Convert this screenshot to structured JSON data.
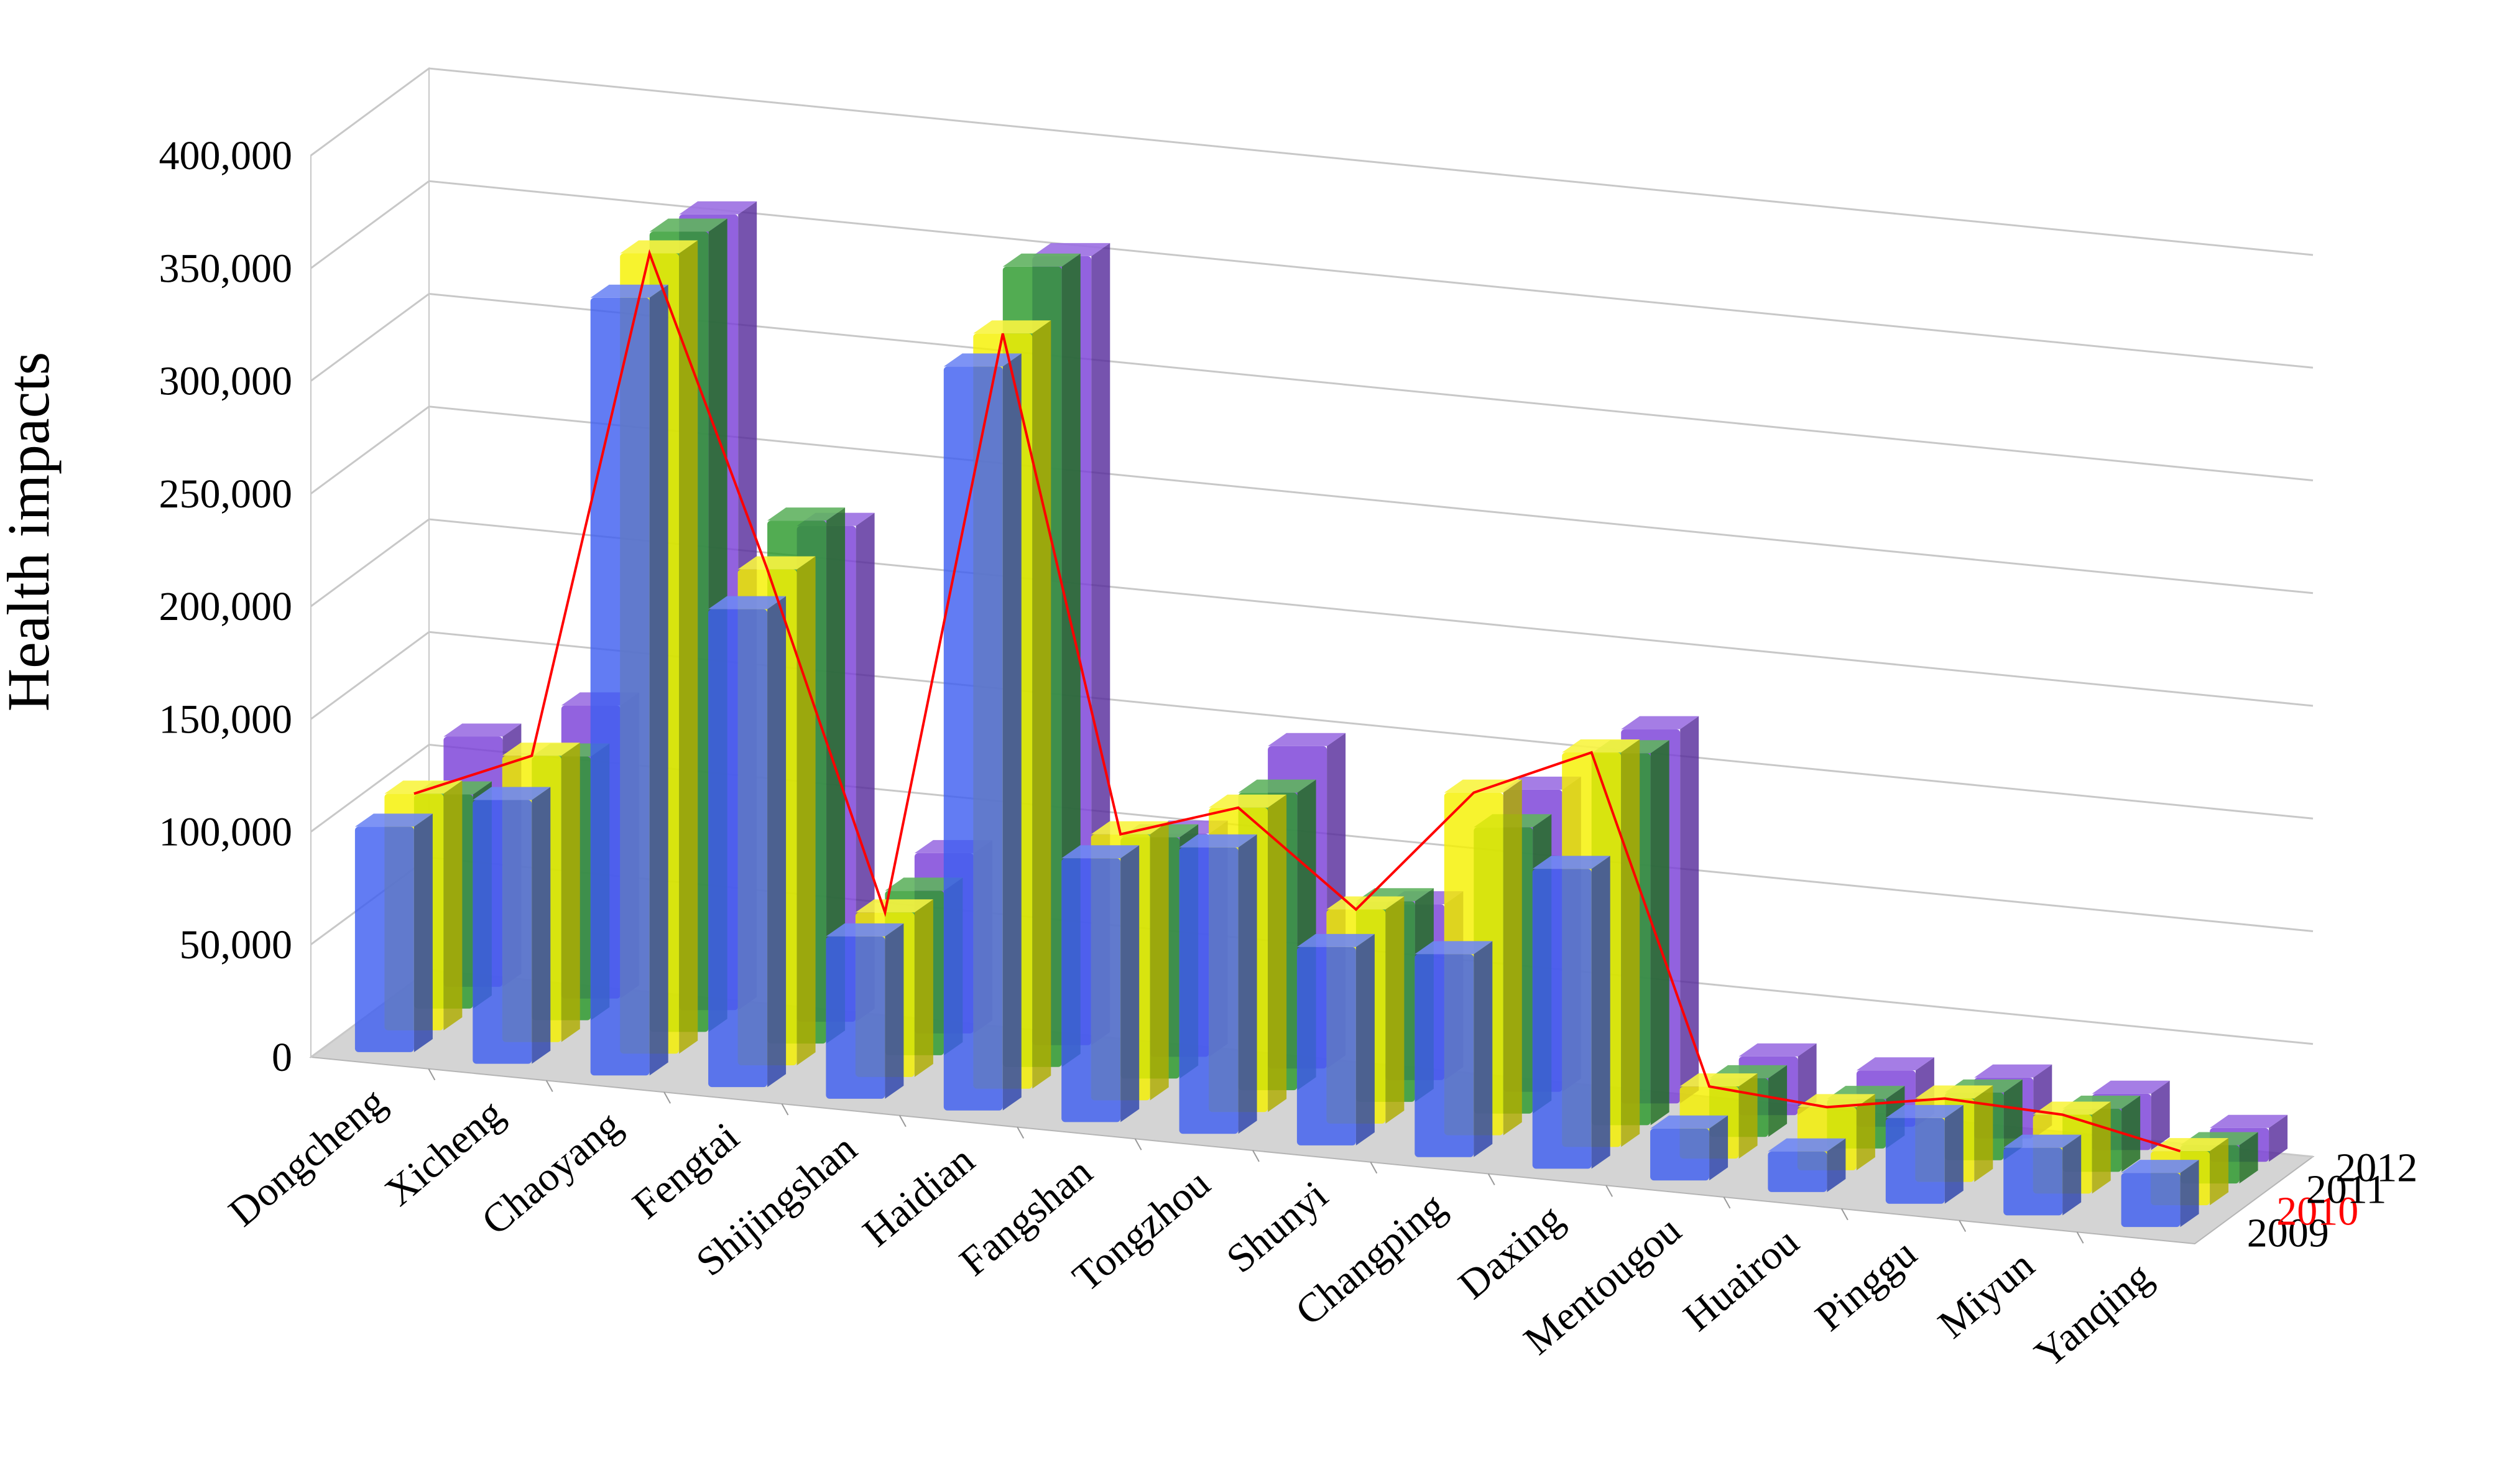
{
  "chart_data": {
    "type": "bar",
    "subtype": "3d-clustered-depth",
    "ylabel": "Health impacts",
    "xlabel": "",
    "ylim": [
      0,
      400000
    ],
    "yticks": [
      {
        "value": 0,
        "label": "0"
      },
      {
        "value": 50000,
        "label": "50,000"
      },
      {
        "value": 100000,
        "label": "100,000"
      },
      {
        "value": 150000,
        "label": "150,000"
      },
      {
        "value": 200000,
        "label": "200,000"
      },
      {
        "value": 250000,
        "label": "250,000"
      },
      {
        "value": 300000,
        "label": "300,000"
      },
      {
        "value": 350000,
        "label": "350,000"
      },
      {
        "value": 400000,
        "label": "400,000"
      }
    ],
    "grid": true,
    "categories": [
      "Dongcheng",
      "Xicheng",
      "Chaoyang",
      "Fengtai",
      "Shijingshan",
      "Haidian",
      "Fangshan",
      "Tongzhou",
      "Shunyi",
      "Changping",
      "Daxing",
      "Mentougou",
      "Huairou",
      "Pinggu",
      "Miyun",
      "Yanqing"
    ],
    "series": [
      {
        "name": "2009",
        "color": "#3f5ff0",
        "values": [
          100000,
          117000,
          345000,
          212000,
          72000,
          330000,
          117000,
          127000,
          88000,
          90000,
          133000,
          23000,
          18000,
          38000,
          30000,
          24000
        ]
      },
      {
        "name": "2010",
        "color": "#f5f000",
        "values": [
          105000,
          127000,
          355000,
          220000,
          73000,
          335000,
          118000,
          135000,
          95000,
          152000,
          175000,
          32000,
          28000,
          37000,
          35000,
          24000
        ]
      },
      {
        "name": "2011",
        "color": "#2c9a2c",
        "values": [
          95000,
          117000,
          355000,
          232000,
          73000,
          355000,
          107000,
          132000,
          89000,
          127000,
          165000,
          26000,
          22000,
          30000,
          28000,
          17000
        ]
      },
      {
        "name": "2012",
        "color": "#7a3fd8",
        "values": [
          111000,
          130000,
          353000,
          220000,
          80000,
          350000,
          99000,
          143000,
          78000,
          134000,
          166000,
          26000,
          25000,
          27000,
          25000,
          15000
        ]
      }
    ],
    "highlight_line": {
      "series": "2010",
      "color": "#ff0000"
    },
    "depth_labels": [
      "2009",
      "2010",
      "2011",
      "2012"
    ],
    "depth_label_colors": [
      "#000000",
      "#ff0000",
      "#000000",
      "#000000"
    ]
  }
}
